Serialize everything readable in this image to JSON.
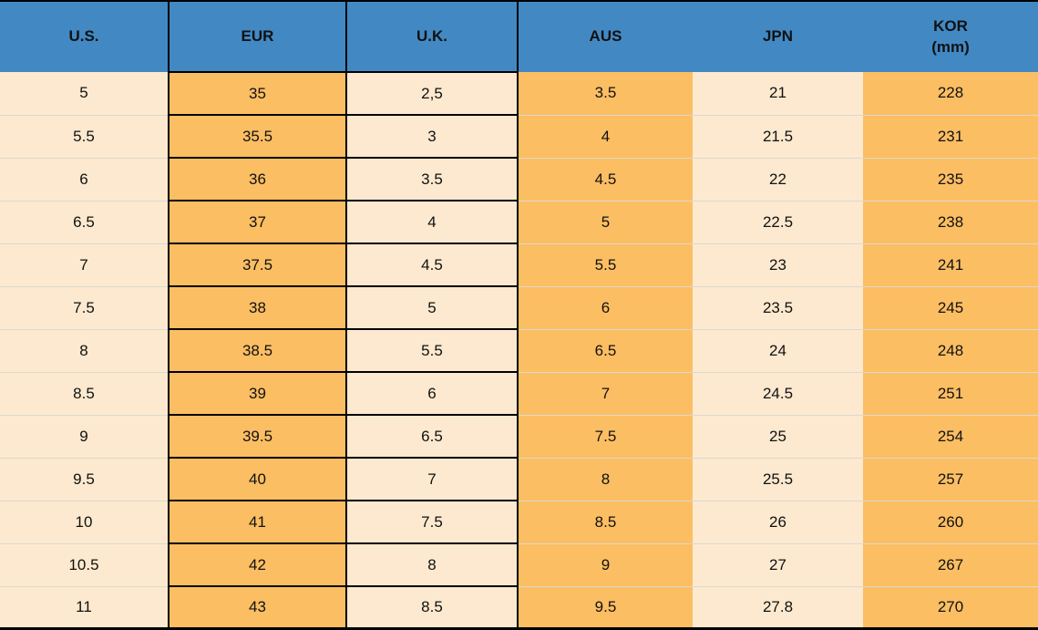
{
  "colors": {
    "header_blue": "#4289C4",
    "cell_orange": "#FCBE63",
    "cell_cream": "#FCE9CF",
    "border_black": "#000000",
    "row_separator": "#DCD8D0",
    "text": "#111111"
  },
  "chart_data": {
    "type": "table",
    "legend_position": "none",
    "columns": [
      {
        "label": "U.S.",
        "sub": "",
        "fill": "cream",
        "bordered": false
      },
      {
        "label": "EUR",
        "sub": "",
        "fill": "orange",
        "bordered": true
      },
      {
        "label": "U.K.",
        "sub": "",
        "fill": "cream",
        "bordered": true
      },
      {
        "label": "AUS",
        "sub": "",
        "fill": "orange",
        "bordered": false
      },
      {
        "label": "JPN",
        "sub": "",
        "fill": "cream",
        "bordered": false
      },
      {
        "label": "KOR",
        "sub": "(mm)",
        "fill": "orange",
        "bordered": false
      }
    ],
    "rows": [
      [
        "5",
        "35",
        "2,5",
        "3.5",
        "21",
        "228"
      ],
      [
        "5.5",
        "35.5",
        "3",
        "4",
        "21.5",
        "231"
      ],
      [
        "6",
        "36",
        "3.5",
        "4.5",
        "22",
        "235"
      ],
      [
        "6.5",
        "37",
        "4",
        "5",
        "22.5",
        "238"
      ],
      [
        "7",
        "37.5",
        "4.5",
        "5.5",
        "23",
        "241"
      ],
      [
        "7.5",
        "38",
        "5",
        "6",
        "23.5",
        "245"
      ],
      [
        "8",
        "38.5",
        "5.5",
        "6.5",
        "24",
        "248"
      ],
      [
        "8.5",
        "39",
        "6",
        "7",
        "24.5",
        "251"
      ],
      [
        "9",
        "39.5",
        "6.5",
        "7.5",
        "25",
        "254"
      ],
      [
        "9.5",
        "40",
        "7",
        "8",
        "25.5",
        "257"
      ],
      [
        "10",
        "41",
        "7.5",
        "8.5",
        "26",
        "260"
      ],
      [
        "10.5",
        "42",
        "8",
        "9",
        "27",
        "267"
      ],
      [
        "11",
        "43",
        "8.5",
        "9.5",
        "27.8",
        "270"
      ]
    ]
  }
}
